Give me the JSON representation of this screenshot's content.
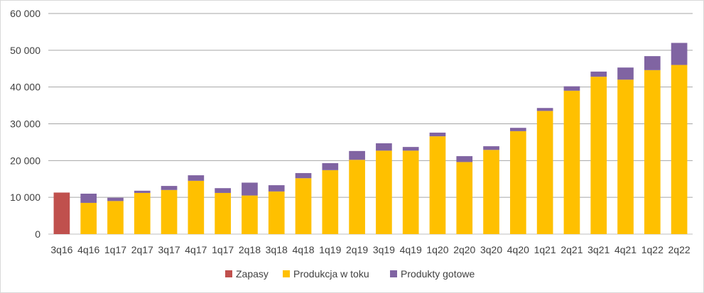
{
  "chart_data": {
    "type": "bar",
    "stacked": true,
    "categories": [
      "3q16",
      "4q16",
      "1q17",
      "2q17",
      "3q17",
      "4q17",
      "1q17",
      "2q18",
      "3q18",
      "4q18",
      "1q19",
      "2q19",
      "3q19",
      "4q19",
      "1q20",
      "2q20",
      "3q20",
      "4q20",
      "1q21",
      "2q21",
      "3q21",
      "4q21",
      "1q22",
      "2q22"
    ],
    "series": [
      {
        "name": "Zapasy",
        "color": "#c0504d",
        "values": [
          11300,
          0,
          0,
          0,
          0,
          0,
          0,
          0,
          0,
          0,
          0,
          0,
          0,
          0,
          0,
          0,
          0,
          0,
          0,
          0,
          0,
          0,
          0,
          0
        ]
      },
      {
        "name": "Produkcja w toku",
        "color": "#ffc000",
        "values": [
          0,
          8500,
          9000,
          11200,
          12000,
          14500,
          11200,
          10500,
          11600,
          15200,
          17400,
          20200,
          22700,
          22700,
          26600,
          19600,
          22900,
          28000,
          33500,
          39000,
          42800,
          42000,
          44600,
          46000
        ]
      },
      {
        "name": "Produkty gotowe",
        "color": "#8064a2",
        "values": [
          0,
          2500,
          900,
          600,
          1100,
          1500,
          1300,
          3500,
          1700,
          1400,
          1900,
          2400,
          2000,
          1000,
          1000,
          1600,
          1000,
          900,
          800,
          1200,
          1400,
          3300,
          3800,
          6000
        ]
      }
    ],
    "yticks": [
      "0",
      "10 000",
      "20 000",
      "30 000",
      "40 000",
      "50 000",
      "60 000"
    ],
    "ylim": [
      0,
      60000
    ],
    "grid": true,
    "legend_position": "bottom"
  }
}
